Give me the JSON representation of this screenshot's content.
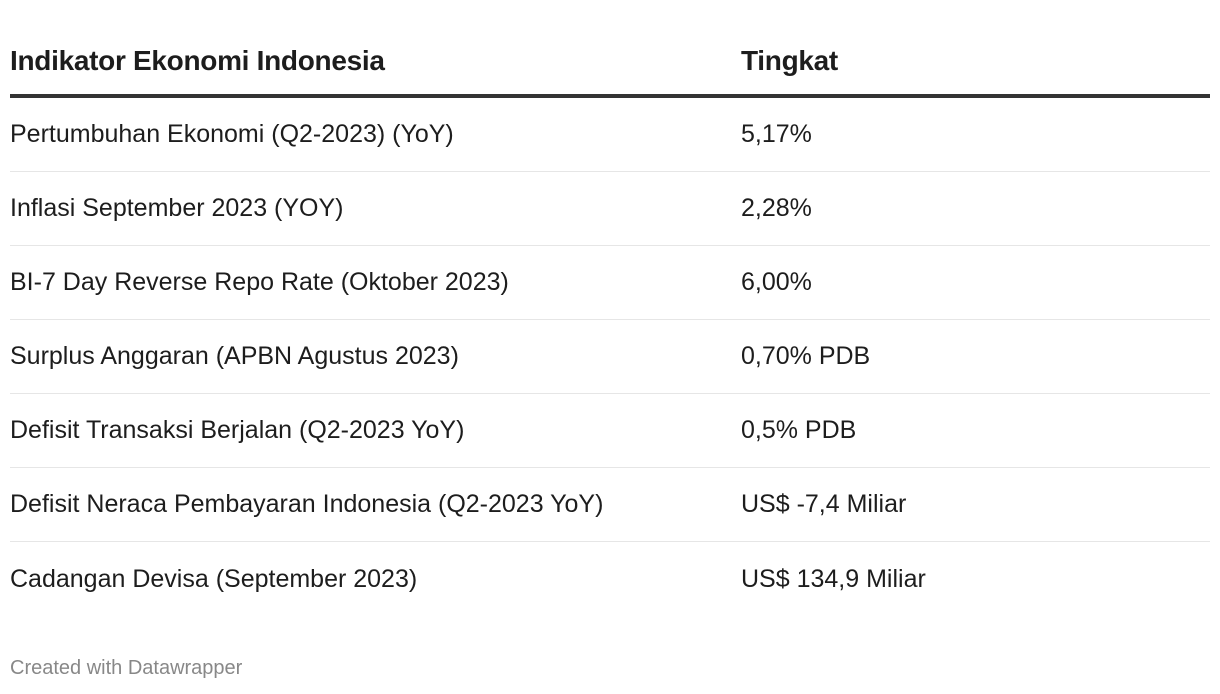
{
  "table": {
    "headers": [
      "Indikator Ekonomi Indonesia",
      "Tingkat"
    ],
    "rows": [
      [
        "Pertumbuhan Ekonomi (Q2-2023) (YoY)",
        "5,17%"
      ],
      [
        "Inflasi September 2023 (YOY)",
        "2,28%"
      ],
      [
        "BI-7 Day Reverse Repo Rate (Oktober 2023)",
        "6,00%"
      ],
      [
        "Surplus Anggaran (APBN Agustus 2023)",
        "0,70% PDB"
      ],
      [
        "Defisit Transaksi Berjalan (Q2-2023 YoY)",
        "0,5% PDB"
      ],
      [
        "Defisit Neraca Pembayaran Indonesia (Q2-2023 YoY)",
        "US$ -7,4 Miliar"
      ],
      [
        "Cadangan Devisa (September 2023)",
        "US$ 134,9 Miliar"
      ]
    ]
  },
  "chart_data": {
    "type": "table",
    "columns": [
      "Indikator Ekonomi Indonesia",
      "Tingkat"
    ],
    "rows": [
      [
        "Pertumbuhan Ekonomi (Q2-2023) (YoY)",
        "5,17%"
      ],
      [
        "Inflasi September 2023 (YOY)",
        "2,28%"
      ],
      [
        "BI-7 Day Reverse Repo Rate (Oktober 2023)",
        "6,00%"
      ],
      [
        "Surplus Anggaran (APBN Agustus 2023)",
        "0,70% PDB"
      ],
      [
        "Defisit Transaksi Berjalan (Q2-2023 YoY)",
        "0,5% PDB"
      ],
      [
        "Defisit Neraca Pembayaran Indonesia (Q2-2023 YoY)",
        "US$ -7,4 Miliar"
      ],
      [
        "Cadangan Devisa (September 2023)",
        "US$ 134,9 Miliar"
      ]
    ]
  },
  "footer": {
    "credit": "Created with Datawrapper"
  }
}
